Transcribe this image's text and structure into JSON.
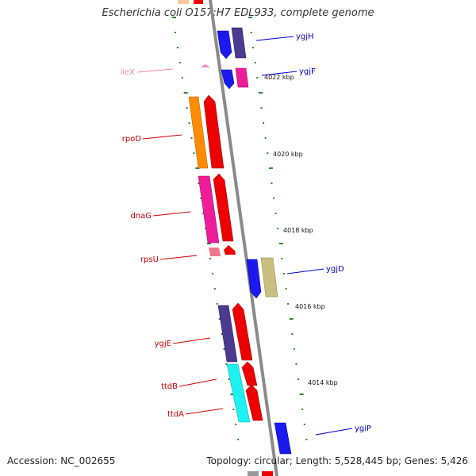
{
  "title": "Escherichia coli O157:H7 EDL933, complete genome",
  "footer": {
    "accession": "Accession: NC_002655",
    "summary": "Topology: circular; Length: 5,528,445 bp; Genes: 5,426"
  },
  "colors": {
    "backbone": "#8a8a8a",
    "tick": "#2a8a2a",
    "label_red": "#cc0000",
    "label_blue": "#0000cc",
    "label_pink": "#ee88aa"
  },
  "scale_labels": [
    "4022 kbp",
    "4020 kbp",
    "4018 kbp",
    "4016 kbp",
    "4014 kbp"
  ],
  "genes": [
    {
      "name": "ygjH",
      "strand": "reverse",
      "color_label": "blue"
    },
    {
      "name": "ileX",
      "strand": "forward",
      "color_label": "pink"
    },
    {
      "name": "ygjF",
      "strand": "reverse",
      "color_label": "blue"
    },
    {
      "name": "rpoD",
      "strand": "forward",
      "color_label": "red"
    },
    {
      "name": "dnaG",
      "strand": "forward",
      "color_label": "red"
    },
    {
      "name": "rpsU",
      "strand": "forward",
      "color_label": "red"
    },
    {
      "name": "ygjD",
      "strand": "reverse",
      "color_label": "blue"
    },
    {
      "name": "ygjE",
      "strand": "forward",
      "color_label": "red"
    },
    {
      "name": "ttdB",
      "strand": "forward",
      "color_label": "red"
    },
    {
      "name": "ttdA",
      "strand": "forward",
      "color_label": "red"
    },
    {
      "name": "ygiP",
      "strand": "reverse",
      "color_label": "blue"
    }
  ]
}
